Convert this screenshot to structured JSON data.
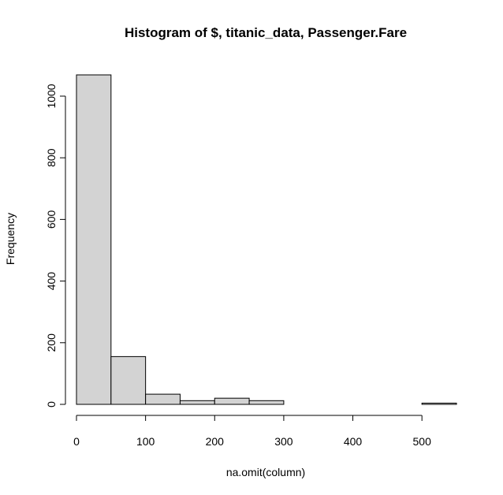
{
  "chart_data": {
    "type": "bar",
    "title": "Histogram of  $, titanic_data, Passenger.Fare",
    "xlabel": "na.omit(column)",
    "ylabel": "Frequency",
    "bins": [
      {
        "start": 0,
        "end": 50,
        "count": 1069
      },
      {
        "start": 50,
        "end": 100,
        "count": 155
      },
      {
        "start": 100,
        "end": 150,
        "count": 33
      },
      {
        "start": 150,
        "end": 200,
        "count": 12
      },
      {
        "start": 200,
        "end": 250,
        "count": 20
      },
      {
        "start": 250,
        "end": 300,
        "count": 12
      },
      {
        "start": 300,
        "end": 350,
        "count": 0
      },
      {
        "start": 350,
        "end": 400,
        "count": 0
      },
      {
        "start": 400,
        "end": 450,
        "count": 0
      },
      {
        "start": 450,
        "end": 500,
        "count": 0
      },
      {
        "start": 500,
        "end": 550,
        "count": 4
      }
    ],
    "x_ticks": [
      0,
      100,
      200,
      300,
      400,
      500
    ],
    "x_tick_labels": [
      "0",
      "100",
      "200",
      "300",
      "400",
      "500"
    ],
    "y_ticks": [
      0,
      200,
      400,
      600,
      800,
      1000
    ],
    "y_tick_labels": [
      "0",
      "200",
      "400",
      "600",
      "800",
      "1000"
    ],
    "xlim": [
      0,
      550
    ],
    "ylim": [
      0,
      1069
    ],
    "bar_fill": "#d3d3d3",
    "bar_stroke": "#000000",
    "grid": false,
    "legend": "none"
  }
}
